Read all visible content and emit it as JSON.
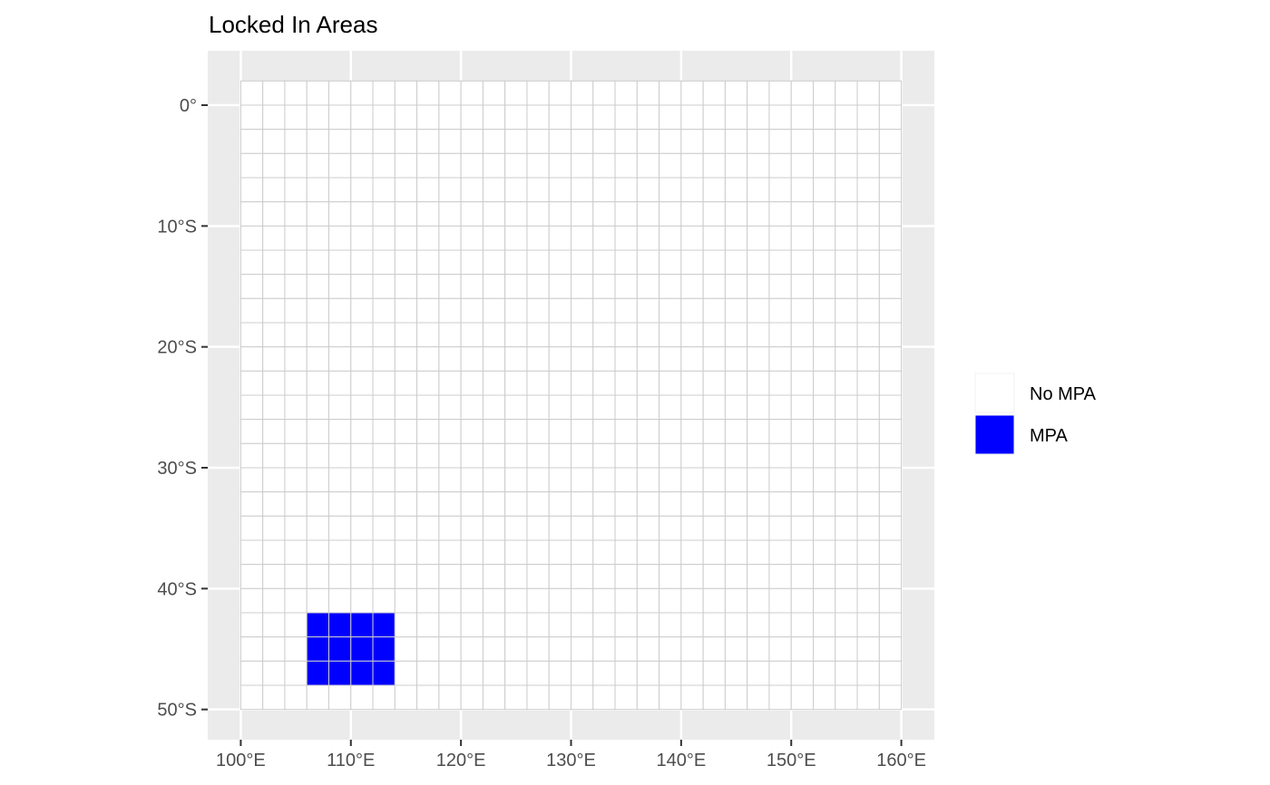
{
  "chart_data": {
    "type": "heatmap",
    "title": "Locked In Areas",
    "xlabel": "",
    "ylabel": "",
    "xlim": [
      97,
      163
    ],
    "ylim": [
      -52.5,
      4.5
    ],
    "grid_extent": {
      "lon": [
        100,
        160
      ],
      "lat": [
        -50,
        2
      ]
    },
    "cell_size": {
      "lon": 2,
      "lat": 2
    },
    "x_ticks": [
      {
        "value": 100,
        "label": "100°E"
      },
      {
        "value": 110,
        "label": "110°E"
      },
      {
        "value": 120,
        "label": "120°E"
      },
      {
        "value": 130,
        "label": "130°E"
      },
      {
        "value": 140,
        "label": "140°E"
      },
      {
        "value": 150,
        "label": "150°E"
      },
      {
        "value": 160,
        "label": "160°E"
      }
    ],
    "y_ticks": [
      {
        "value": 0,
        "label": "0°"
      },
      {
        "value": -10,
        "label": "10°S"
      },
      {
        "value": -20,
        "label": "20°S"
      },
      {
        "value": -30,
        "label": "30°S"
      },
      {
        "value": -40,
        "label": "40°S"
      },
      {
        "value": -50,
        "label": "50°S"
      }
    ],
    "mpa_region": {
      "lon": [
        106,
        114
      ],
      "lat": [
        -48,
        -42
      ]
    },
    "categories": [
      "No MPA",
      "MPA"
    ],
    "colors": {
      "No MPA": "#ffffff",
      "MPA": "#0000ff"
    },
    "cell_border_color": "#cccccc",
    "panel_background": "#ebebeb",
    "gridline_color": "#ffffff",
    "legend_position": "right",
    "grid": true
  }
}
